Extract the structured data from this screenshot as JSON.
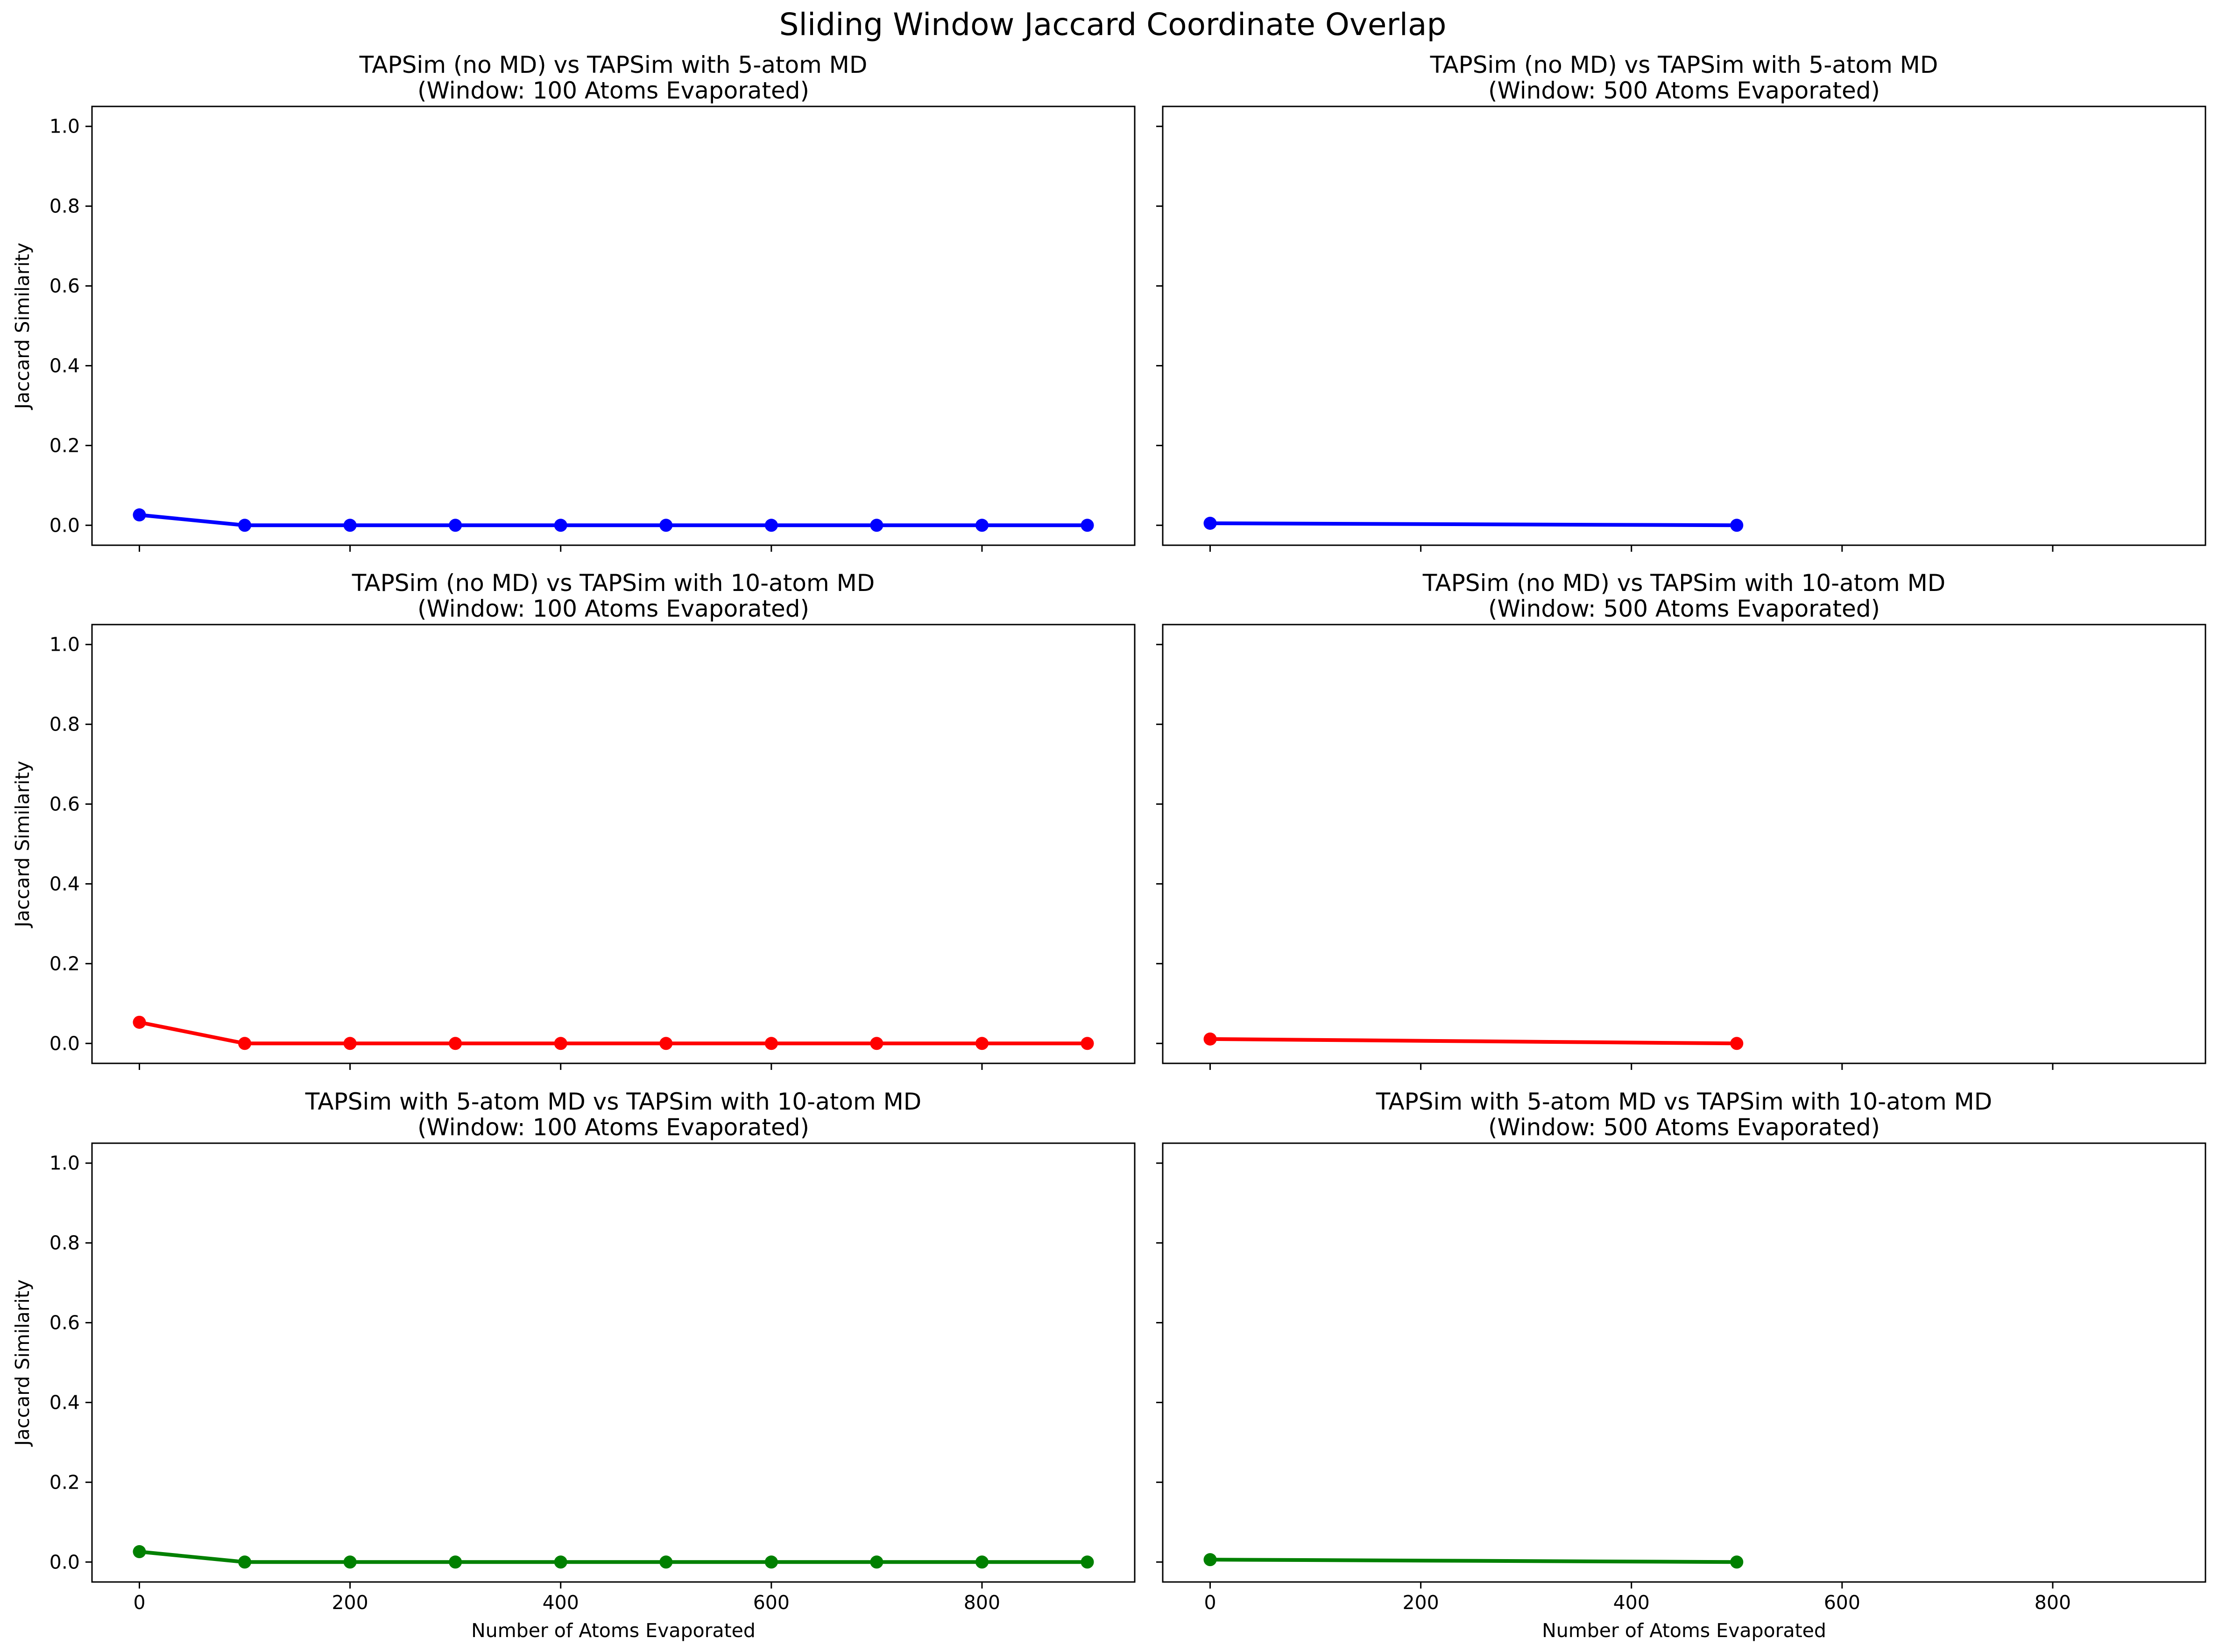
{
  "chart_data": {
    "type": "line",
    "suptitle": "Sliding Window Jaccard Coordinate Overlap",
    "ylabel": "Jaccard Similarity",
    "xlabel": "Number of Atoms Evaporated",
    "xlim": [
      -45,
      945
    ],
    "ylim": [
      -0.05,
      1.05
    ],
    "x_ticks": [
      0,
      200,
      400,
      600,
      800
    ],
    "y_ticks": [
      0.0,
      0.2,
      0.4,
      0.6,
      0.8,
      1.0
    ],
    "y_tick_labels": [
      "0.0",
      "0.2",
      "0.4",
      "0.6",
      "0.8",
      "1.0"
    ],
    "x_tick_labels": [
      "0",
      "200",
      "400",
      "600",
      "800"
    ],
    "grid": false,
    "sharex": true,
    "sharey": true,
    "subplots": [
      {
        "title_line1": "TAPSim (no MD) vs TAPSim with 5-atom MD",
        "title_line2": "(Window: 100 Atoms Evaporated)",
        "color": "#0000ff",
        "x": [
          0,
          100,
          200,
          300,
          400,
          500,
          600,
          700,
          800,
          900
        ],
        "y": [
          0.026,
          0.0,
          0.0,
          0.0,
          0.0,
          0.0,
          0.0,
          0.0,
          0.0,
          0.0
        ]
      },
      {
        "title_line1": "TAPSim (no MD) vs TAPSim with 5-atom MD",
        "title_line2": "(Window: 500 Atoms Evaporated)",
        "color": "#0000ff",
        "x": [
          0,
          500
        ],
        "y": [
          0.005,
          0.0
        ]
      },
      {
        "title_line1": "TAPSim (no MD) vs TAPSim with 10-atom MD",
        "title_line2": "(Window: 100 Atoms Evaporated)",
        "color": "#ff0000",
        "x": [
          0,
          100,
          200,
          300,
          400,
          500,
          600,
          700,
          800,
          900
        ],
        "y": [
          0.053,
          0.0,
          0.0,
          0.0,
          0.0,
          0.0,
          0.0,
          0.0,
          0.0,
          0.0
        ]
      },
      {
        "title_line1": "TAPSim (no MD) vs TAPSim with 10-atom MD",
        "title_line2": "(Window: 500 Atoms Evaporated)",
        "color": "#ff0000",
        "x": [
          0,
          500
        ],
        "y": [
          0.011,
          0.0
        ]
      },
      {
        "title_line1": "TAPSim with 5-atom MD vs TAPSim with 10-atom MD",
        "title_line2": "(Window: 100 Atoms Evaporated)",
        "color": "#008000",
        "x": [
          0,
          100,
          200,
          300,
          400,
          500,
          600,
          700,
          800,
          900
        ],
        "y": [
          0.026,
          0.0,
          0.0,
          0.0,
          0.0,
          0.0,
          0.0,
          0.0,
          0.0,
          0.0
        ]
      },
      {
        "title_line1": "TAPSim with 5-atom MD vs TAPSim with 10-atom MD",
        "title_line2": "(Window: 500 Atoms Evaporated)",
        "color": "#008000",
        "x": [
          0,
          500
        ],
        "y": [
          0.006,
          0.0
        ]
      }
    ]
  }
}
